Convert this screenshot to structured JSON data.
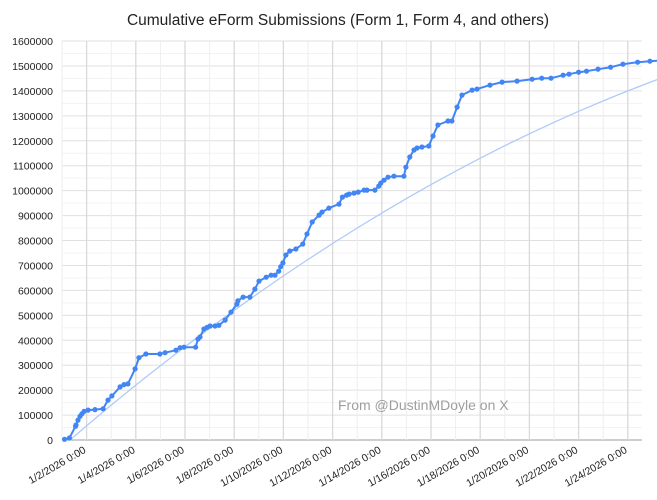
{
  "chart_data": {
    "type": "line",
    "title": "Cumulative eForm Submissions (Form 1, Form 4, and others)",
    "xlabel": "",
    "ylabel": "",
    "ylim": [
      0,
      1600000
    ],
    "yticks": [
      0,
      100000,
      200000,
      300000,
      400000,
      500000,
      600000,
      700000,
      800000,
      900000,
      1000000,
      1100000,
      1200000,
      1300000,
      1400000,
      1500000,
      1600000
    ],
    "xtick_labels": [
      "1/2/2026 0:00",
      "1/4/2026 0:00",
      "1/6/2026 0:00",
      "1/8/2026 0:00",
      "1/10/2026 0:00",
      "1/12/2026 0:00",
      "1/14/2026 0:00",
      "1/16/2026 0:00",
      "1/18/2026 0:00",
      "1/20/2026 0:00",
      "1/22/2026 0:00",
      "1/24/2026 0:00"
    ],
    "xlim_days_from_2026_01_01": [
      0,
      24.6
    ],
    "grid": true,
    "legend": "none",
    "annotation": "From @DustinMDoyle on X",
    "series": [
      {
        "name": "Cumulative submissions",
        "color": "#4285f4",
        "markers": true,
        "x_days_from_2026_01_01": [
          0.1,
          0.3,
          0.55,
          0.57,
          0.65,
          0.73,
          0.81,
          0.9,
          1.06,
          1.34,
          1.67,
          1.87,
          2.03,
          2.36,
          2.52,
          2.68,
          2.97,
          3.13,
          3.41,
          3.98,
          4.19,
          4.63,
          4.8,
          4.96,
          5.43,
          5.53,
          5.61,
          5.77,
          5.9,
          6.02,
          6.22,
          6.38,
          6.63,
          6.87,
          7.11,
          7.15,
          7.36,
          7.64,
          7.84,
          8.01,
          8.3,
          8.5,
          8.66,
          8.81,
          8.89,
          8.98,
          9.1,
          9.26,
          9.51,
          9.79,
          9.96,
          10.17,
          10.45,
          10.57,
          10.85,
          11.26,
          11.4,
          11.57,
          11.67,
          11.87,
          12.04,
          12.28,
          12.4,
          12.72,
          12.88,
          12.96,
          13.09,
          13.25,
          13.49,
          13.9,
          13.98,
          14.14,
          14.31,
          14.63,
          14.43,
          14.91,
          15.08,
          15.28,
          15.69,
          15.85,
          16.06,
          16.26,
          16.67,
          16.87,
          17.4,
          17.89,
          18.5,
          19.11,
          19.5,
          19.88,
          20.37,
          20.61,
          21.0,
          21.32,
          21.79,
          22.3,
          22.8,
          23.4,
          23.9,
          24.5
        ],
        "values": [
          3000,
          8000,
          55000,
          60000,
          80000,
          95000,
          105000,
          115000,
          120000,
          122000,
          125000,
          160000,
          177000,
          213000,
          222000,
          225000,
          285000,
          330000,
          345000,
          345000,
          350000,
          360000,
          370000,
          372000,
          372000,
          405000,
          413000,
          445000,
          452000,
          457000,
          457000,
          460000,
          481000,
          513000,
          545000,
          558000,
          573000,
          573000,
          605000,
          637000,
          653000,
          661000,
          661000,
          677000,
          695000,
          710000,
          742000,
          758000,
          766000,
          786000,
          826000,
          874000,
          902000,
          914000,
          930000,
          946000,
          974000,
          982000,
          986000,
          990000,
          994000,
          1002000,
          1002000,
          1002000,
          1018000,
          1030000,
          1042000,
          1054000,
          1058000,
          1058000,
          1094000,
          1135000,
          1163000,
          1175000,
          1171000,
          1179000,
          1219000,
          1263000,
          1279000,
          1279000,
          1335000,
          1383000,
          1403000,
          1407000,
          1423000,
          1435000,
          1439000,
          1447000,
          1451000,
          1451000,
          1463000,
          1467000,
          1475000,
          1479000,
          1487000,
          1495000,
          1507000,
          1515000,
          1519000,
          1523000
        ]
      },
      {
        "name": "Trendline",
        "color": "#aecbfa",
        "markers": false,
        "x_days_from_2026_01_01": [
          0.33,
          1.0,
          2.0,
          3.0,
          4.0,
          5.0,
          6.0,
          7.0,
          8.0,
          9.0,
          10.0,
          11.0,
          12.0,
          13.0,
          14.0,
          15.0,
          16.0,
          17.0,
          18.0,
          19.0,
          20.0,
          21.0,
          22.0,
          23.0,
          24.0,
          24.6
        ],
        "values": [
          0,
          57000,
          140000,
          220000,
          298000,
          374000,
          448000,
          520000,
          590000,
          658000,
          724000,
          788000,
          850000,
          910000,
          968000,
          1024000,
          1078000,
          1130000,
          1180000,
          1228000,
          1274000,
          1318000,
          1360000,
          1400000,
          1438000,
          1460000
        ]
      }
    ]
  },
  "watermark": "From @DustinMDoyle on X"
}
